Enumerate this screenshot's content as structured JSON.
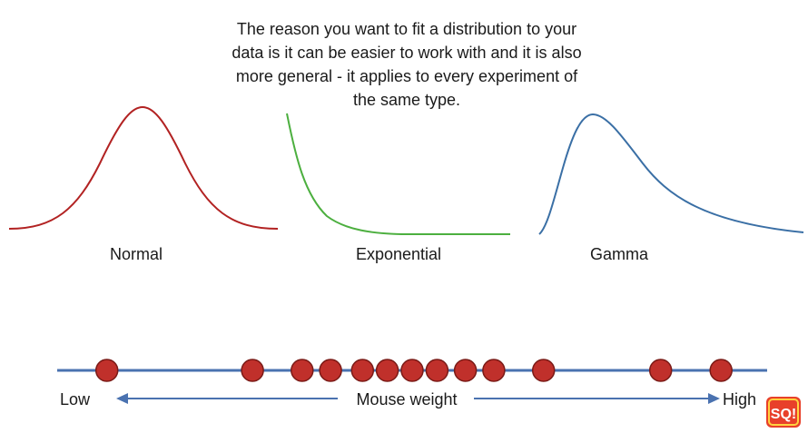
{
  "caption": {
    "lines": [
      "The reason you want to fit a distribution to your",
      "data is it can be easier to work with and it is also",
      "more general - it applies to every experiment of",
      "the same type."
    ]
  },
  "distributions": [
    {
      "label": "Normal",
      "color": "#b22222"
    },
    {
      "label": "Exponential",
      "color": "#4caf3f"
    },
    {
      "label": "Gamma",
      "color": "#3a6fa5"
    }
  ],
  "axis": {
    "line_color": "#4a72b0",
    "low_label": "Low",
    "high_label": "High",
    "center_label": "Mouse weight"
  },
  "data_points": {
    "color": "#c0302b",
    "values": [
      0.07,
      0.275,
      0.345,
      0.385,
      0.43,
      0.465,
      0.5,
      0.535,
      0.575,
      0.615,
      0.685,
      0.85,
      0.935
    ]
  },
  "logo": {
    "text": "SQ!",
    "bg": "#e8402a"
  }
}
